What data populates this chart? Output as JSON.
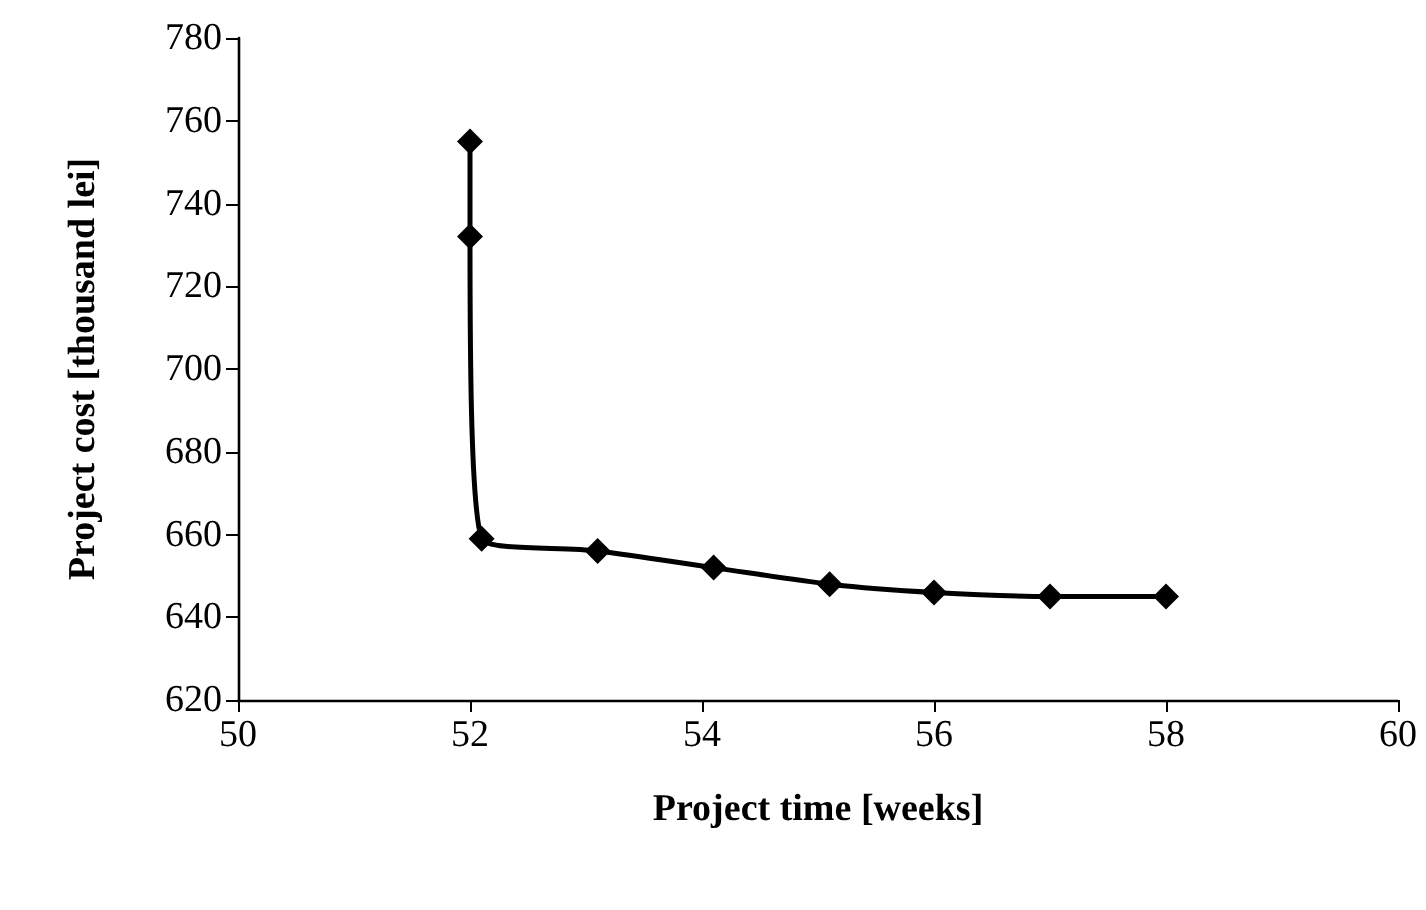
{
  "chart_data": {
    "type": "line",
    "xlabel": "Project time [weeks]",
    "ylabel": "Project cost [thousand lei]",
    "x": [
      52,
      52,
      52.1,
      53.1,
      54.1,
      55.1,
      56,
      57,
      58
    ],
    "series": [
      {
        "color": "#000000",
        "values": [
          755,
          732,
          659,
          656,
          652,
          648,
          646,
          645,
          645
        ]
      }
    ],
    "xlim": [
      50,
      60
    ],
    "xticks": [
      50,
      52,
      54,
      56,
      58,
      60
    ],
    "ylim": [
      620,
      780
    ],
    "yticks": [
      620,
      640,
      660,
      680,
      700,
      720,
      740,
      760,
      780
    ],
    "marker": "diamond",
    "line_style": "solid"
  }
}
